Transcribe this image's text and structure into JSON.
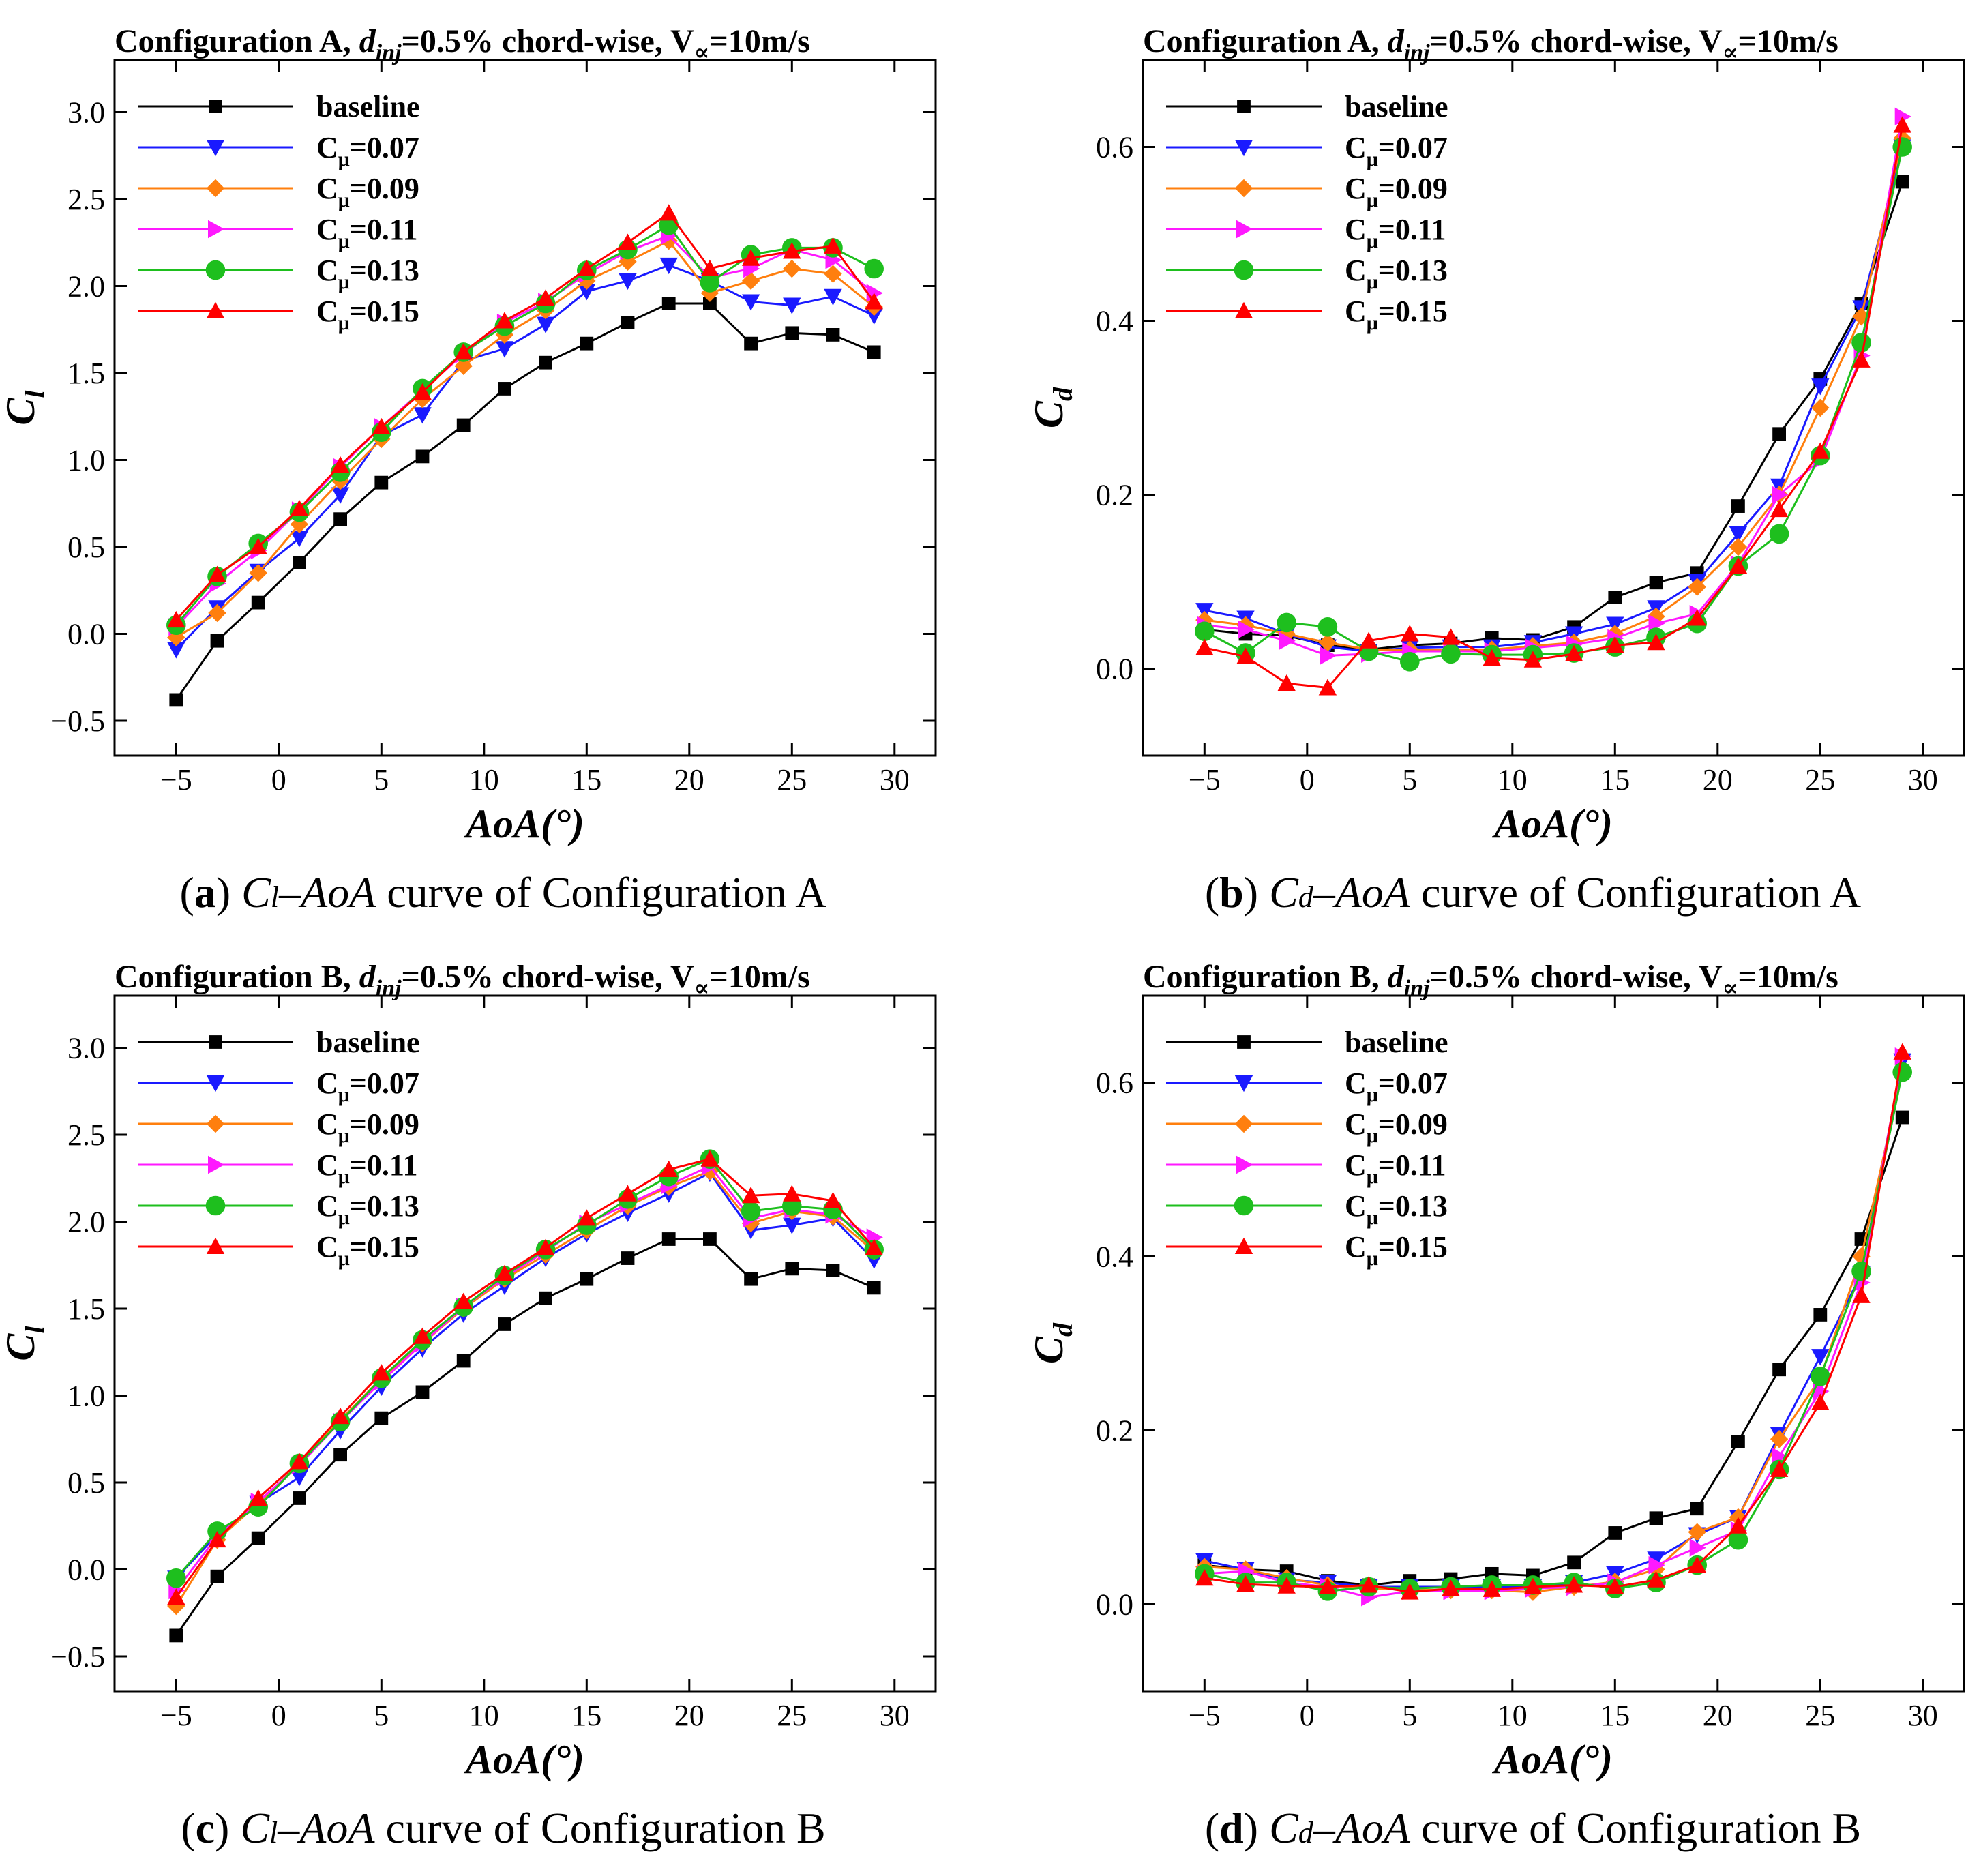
{
  "colors": {
    "baseline": "#000000",
    "cmu007": "#1a1aff",
    "cmu009": "#ff7f0e",
    "cmu011": "#ff19ff",
    "cmu013": "#1ebf1e",
    "cmu015": "#ff0000"
  },
  "legend_labels": {
    "baseline": "baseline",
    "cmu_prefix": "C",
    "cmu_sub": "μ",
    "cmu007": "=0.07",
    "cmu009": "=0.09",
    "cmu011": "=0.11",
    "cmu013": "=0.13",
    "cmu015": "=0.15"
  },
  "chart_data": [
    {
      "id": "a",
      "type": "line",
      "title": {
        "pre": "Configuration A, ",
        "d": "d",
        "inj": "inj",
        "mid": "=0.5% chord-wise, V",
        "inf": "∝",
        "post": "=10m/s"
      },
      "xlabel": "AoA(°)",
      "ylabel_main": "C",
      "ylabel_sub": "l",
      "xlim": [
        -8,
        32
      ],
      "ylim": [
        -0.7,
        3.3
      ],
      "xticks": [
        -5,
        0,
        5,
        10,
        15,
        20,
        25,
        30
      ],
      "xtick_labels": [
        "−5",
        "0",
        "5",
        "10",
        "15",
        "20",
        "25",
        "30"
      ],
      "yticks": [
        -0.5,
        0,
        0.5,
        1,
        1.5,
        2,
        2.5,
        3
      ],
      "ytick_labels": [
        "−0.5",
        "0.0",
        "0.5",
        "1.0",
        "1.5",
        "2.0",
        "2.5",
        "3.0"
      ],
      "caption": {
        "letter": "a",
        "sym": "C",
        "sub": "l",
        "var": "–AoA",
        "rest": " curve of Configuration A"
      },
      "x": [
        -5,
        -3,
        -1,
        1,
        3,
        5,
        7,
        9,
        11,
        13,
        15,
        17,
        19,
        21,
        23,
        25,
        27,
        29
      ],
      "series": [
        {
          "key": "baseline",
          "marker": "square",
          "values": [
            -0.38,
            -0.04,
            0.18,
            0.41,
            0.66,
            0.87,
            1.02,
            1.2,
            1.41,
            1.56,
            1.67,
            1.79,
            1.9,
            1.9,
            1.67,
            1.73,
            1.72,
            1.62
          ]
        },
        {
          "key": "cmu007",
          "marker": "tri-down",
          "values": [
            -0.09,
            0.15,
            0.36,
            0.55,
            0.8,
            1.14,
            1.26,
            1.57,
            1.64,
            1.78,
            1.97,
            2.03,
            2.12,
            2.03,
            1.91,
            1.89,
            1.94,
            1.83
          ]
        },
        {
          "key": "cmu009",
          "marker": "diamond",
          "values": [
            -0.02,
            0.12,
            0.35,
            0.63,
            0.88,
            1.12,
            1.35,
            1.54,
            1.72,
            1.86,
            2.03,
            2.14,
            2.26,
            1.96,
            2.03,
            2.1,
            2.07,
            1.88
          ]
        },
        {
          "key": "cmu011",
          "marker": "tri-right",
          "values": [
            0.04,
            0.29,
            0.48,
            0.71,
            0.96,
            1.19,
            1.4,
            1.61,
            1.79,
            1.91,
            2.07,
            2.2,
            2.29,
            2.05,
            2.1,
            2.21,
            2.15,
            1.96
          ]
        },
        {
          "key": "cmu013",
          "marker": "circle",
          "values": [
            0.05,
            0.33,
            0.52,
            0.7,
            0.93,
            1.16,
            1.41,
            1.62,
            1.77,
            1.9,
            2.09,
            2.21,
            2.35,
            2.02,
            2.18,
            2.22,
            2.22,
            2.1
          ]
        },
        {
          "key": "cmu015",
          "marker": "tri-up",
          "values": [
            0.08,
            0.34,
            0.5,
            0.72,
            0.97,
            1.19,
            1.39,
            1.62,
            1.8,
            1.93,
            2.1,
            2.25,
            2.42,
            2.1,
            2.16,
            2.2,
            2.23,
            1.91
          ]
        }
      ]
    },
    {
      "id": "b",
      "type": "line",
      "title": {
        "pre": "Configuration A, ",
        "d": "d",
        "inj": "inj",
        "mid": "=0.5% chord-wise, V",
        "inf": "∝",
        "post": "=10m/s"
      },
      "xlabel": "AoA(°)",
      "ylabel_main": "C",
      "ylabel_sub": "d",
      "xlim": [
        -8,
        32
      ],
      "ylim": [
        -0.1,
        0.7
      ],
      "xticks": [
        -5,
        0,
        5,
        10,
        15,
        20,
        25,
        30
      ],
      "xtick_labels": [
        "−5",
        "0",
        "5",
        "10",
        "15",
        "20",
        "25",
        "30"
      ],
      "yticks": [
        0,
        0.2,
        0.4,
        0.6
      ],
      "ytick_labels": [
        "0.0",
        "0.2",
        "0.4",
        "0.6"
      ],
      "caption": {
        "letter": "b",
        "sym": "C",
        "sub": "d",
        "var": "–AoA",
        "rest": " curve of Configuration A"
      },
      "x": [
        -5,
        -3,
        -1,
        1,
        3,
        5,
        7,
        9,
        11,
        13,
        15,
        17,
        19,
        21,
        23,
        25,
        27,
        29
      ],
      "series": [
        {
          "key": "baseline",
          "marker": "square",
          "values": [
            0.045,
            0.04,
            0.038,
            0.027,
            0.022,
            0.027,
            0.029,
            0.035,
            0.033,
            0.048,
            0.082,
            0.099,
            0.11,
            0.187,
            0.27,
            0.333,
            0.42,
            0.56
          ]
        },
        {
          "key": "cmu007",
          "marker": "tri-down",
          "values": [
            0.067,
            0.058,
            0.04,
            0.025,
            0.02,
            0.024,
            0.025,
            0.025,
            0.03,
            0.04,
            0.051,
            0.07,
            0.1,
            0.155,
            0.21,
            0.325,
            0.415,
            0.6
          ]
        },
        {
          "key": "cmu009",
          "marker": "diamond",
          "values": [
            0.056,
            0.05,
            0.04,
            0.03,
            0.022,
            0.022,
            0.022,
            0.022,
            0.026,
            0.03,
            0.04,
            0.06,
            0.094,
            0.14,
            0.2,
            0.3,
            0.405,
            0.61
          ]
        },
        {
          "key": "cmu011",
          "marker": "tri-right",
          "values": [
            0.05,
            0.045,
            0.032,
            0.015,
            0.017,
            0.02,
            0.02,
            0.02,
            0.024,
            0.028,
            0.035,
            0.052,
            0.063,
            0.12,
            0.2,
            0.24,
            0.36,
            0.635
          ]
        },
        {
          "key": "cmu013",
          "marker": "circle",
          "values": [
            0.043,
            0.018,
            0.053,
            0.048,
            0.02,
            0.008,
            0.017,
            0.016,
            0.016,
            0.018,
            0.025,
            0.036,
            0.052,
            0.118,
            0.155,
            0.245,
            0.375,
            0.6
          ]
        },
        {
          "key": "cmu015",
          "marker": "tri-up",
          "values": [
            0.024,
            0.014,
            -0.017,
            -0.022,
            0.032,
            0.04,
            0.036,
            0.012,
            0.01,
            0.017,
            0.027,
            0.03,
            0.058,
            0.118,
            0.183,
            0.25,
            0.355,
            0.625
          ]
        }
      ]
    },
    {
      "id": "c",
      "type": "line",
      "title": {
        "pre": "Configuration B, ",
        "d": "d",
        "inj": "inj",
        "mid": "=0.5% chord-wise, V",
        "inf": "∝",
        "post": "=10m/s"
      },
      "xlabel": "AoA(°)",
      "ylabel_main": "C",
      "ylabel_sub": "l",
      "xlim": [
        -8,
        32
      ],
      "ylim": [
        -0.7,
        3.3
      ],
      "xticks": [
        -5,
        0,
        5,
        10,
        15,
        20,
        25,
        30
      ],
      "xtick_labels": [
        "−5",
        "0",
        "5",
        "10",
        "15",
        "20",
        "25",
        "30"
      ],
      "yticks": [
        -0.5,
        0,
        0.5,
        1,
        1.5,
        2,
        2.5,
        3
      ],
      "ytick_labels": [
        "−0.5",
        "0.0",
        "0.5",
        "1.0",
        "1.5",
        "2.0",
        "2.5",
        "3.0"
      ],
      "caption": {
        "letter": "c",
        "sym": "C",
        "sub": "l",
        "var": "–AoA",
        "rest": " curve of Configuration B"
      },
      "x": [
        -5,
        -3,
        -1,
        1,
        3,
        5,
        7,
        9,
        11,
        13,
        15,
        17,
        19,
        21,
        23,
        25,
        27,
        29
      ],
      "series": [
        {
          "key": "baseline",
          "marker": "square",
          "values": [
            -0.38,
            -0.04,
            0.18,
            0.41,
            0.66,
            0.87,
            1.02,
            1.2,
            1.41,
            1.56,
            1.67,
            1.79,
            1.9,
            1.9,
            1.67,
            1.73,
            1.72,
            1.62
          ]
        },
        {
          "key": "cmu007",
          "marker": "tri-down",
          "values": [
            -0.05,
            0.2,
            0.38,
            0.53,
            0.8,
            1.05,
            1.27,
            1.47,
            1.63,
            1.79,
            1.93,
            2.05,
            2.16,
            2.28,
            1.95,
            1.98,
            2.02,
            1.78
          ]
        },
        {
          "key": "cmu009",
          "marker": "diamond",
          "values": [
            -0.21,
            0.17,
            0.38,
            0.61,
            0.86,
            1.1,
            1.3,
            1.5,
            1.67,
            1.81,
            1.95,
            2.09,
            2.2,
            2.29,
            1.99,
            2.06,
            2.03,
            1.83
          ]
        },
        {
          "key": "cmu011",
          "marker": "tri-right",
          "values": [
            -0.12,
            0.19,
            0.39,
            0.6,
            0.85,
            1.08,
            1.3,
            1.51,
            1.68,
            1.83,
            1.99,
            2.1,
            2.21,
            2.32,
            2.02,
            2.07,
            2.04,
            1.91
          ]
        },
        {
          "key": "cmu013",
          "marker": "circle",
          "values": [
            -0.05,
            0.22,
            0.36,
            0.61,
            0.85,
            1.1,
            1.32,
            1.51,
            1.69,
            1.84,
            1.98,
            2.13,
            2.26,
            2.36,
            2.06,
            2.09,
            2.07,
            1.84
          ]
        },
        {
          "key": "cmu015",
          "marker": "tri-up",
          "values": [
            -0.16,
            0.17,
            0.41,
            0.62,
            0.88,
            1.13,
            1.34,
            1.54,
            1.7,
            1.85,
            2.02,
            2.16,
            2.3,
            2.36,
            2.15,
            2.16,
            2.12,
            1.85
          ]
        }
      ]
    },
    {
      "id": "d",
      "type": "line",
      "title": {
        "pre": "Configuration B, ",
        "d": "d",
        "inj": "inj",
        "mid": "=0.5% chord-wise, V",
        "inf": "∝",
        "post": "=10m/s"
      },
      "xlabel": "AoA(°)",
      "ylabel_main": "C",
      "ylabel_sub": "d",
      "xlim": [
        -8,
        32
      ],
      "ylim": [
        -0.1,
        0.7
      ],
      "xticks": [
        -5,
        0,
        5,
        10,
        15,
        20,
        25,
        30
      ],
      "xtick_labels": [
        "−5",
        "0",
        "5",
        "10",
        "15",
        "20",
        "25",
        "30"
      ],
      "yticks": [
        0,
        0.2,
        0.4,
        0.6
      ],
      "ytick_labels": [
        "0.0",
        "0.2",
        "0.4",
        "0.6"
      ],
      "caption": {
        "letter": "d",
        "sym": "C",
        "sub": "d",
        "var": "–AoA",
        "rest": " curve of Configuration B"
      },
      "x": [
        -5,
        -3,
        -1,
        1,
        3,
        5,
        7,
        9,
        11,
        13,
        15,
        17,
        19,
        21,
        23,
        25,
        27,
        29
      ],
      "series": [
        {
          "key": "baseline",
          "marker": "square",
          "values": [
            0.045,
            0.04,
            0.038,
            0.027,
            0.022,
            0.027,
            0.029,
            0.035,
            0.033,
            0.048,
            0.082,
            0.099,
            0.11,
            0.187,
            0.27,
            0.333,
            0.42,
            0.56
          ]
        },
        {
          "key": "cmu007",
          "marker": "tri-down",
          "values": [
            0.05,
            0.04,
            0.028,
            0.025,
            0.02,
            0.02,
            0.02,
            0.02,
            0.02,
            0.025,
            0.035,
            0.052,
            0.08,
            0.1,
            0.195,
            0.285,
            0.38,
            0.625
          ]
        },
        {
          "key": "cmu009",
          "marker": "diamond",
          "values": [
            0.043,
            0.04,
            0.03,
            0.022,
            0.018,
            0.017,
            0.016,
            0.016,
            0.014,
            0.02,
            0.026,
            0.04,
            0.083,
            0.1,
            0.19,
            0.26,
            0.4,
            0.612
          ]
        },
        {
          "key": "cmu011",
          "marker": "tri-right",
          "values": [
            0.035,
            0.038,
            0.025,
            0.02,
            0.008,
            0.015,
            0.015,
            0.015,
            0.018,
            0.02,
            0.025,
            0.045,
            0.065,
            0.085,
            0.17,
            0.245,
            0.37,
            0.63
          ]
        },
        {
          "key": "cmu013",
          "marker": "circle",
          "values": [
            0.035,
            0.025,
            0.025,
            0.015,
            0.02,
            0.018,
            0.02,
            0.022,
            0.022,
            0.025,
            0.018,
            0.025,
            0.045,
            0.074,
            0.155,
            0.262,
            0.383,
            0.612
          ]
        },
        {
          "key": "cmu015",
          "marker": "tri-up",
          "values": [
            0.03,
            0.023,
            0.021,
            0.02,
            0.022,
            0.014,
            0.018,
            0.017,
            0.02,
            0.022,
            0.02,
            0.028,
            0.045,
            0.09,
            0.155,
            0.232,
            0.355,
            0.635
          ]
        }
      ]
    }
  ]
}
